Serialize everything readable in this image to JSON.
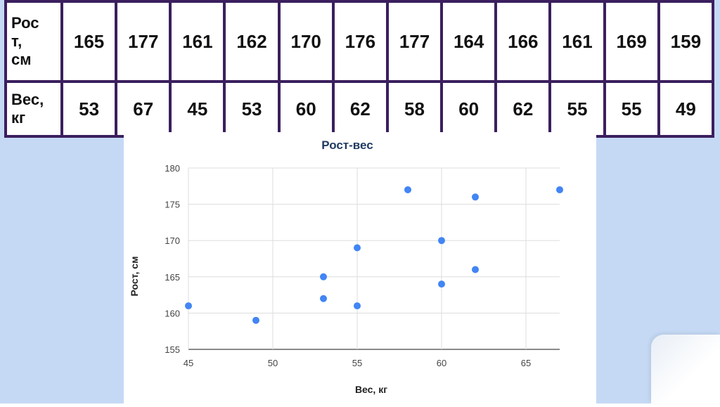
{
  "table": {
    "row1_label": "Рос\nт,\nсм",
    "row2_label": "Вес,\nкг",
    "heights": [
      "165",
      "177",
      "161",
      "162",
      "170",
      "176",
      "177",
      "164",
      "166",
      "161",
      "169",
      "159"
    ],
    "weights": [
      "53",
      "67",
      "45",
      "53",
      "60",
      "62",
      "58",
      "60",
      "62",
      "55",
      "55",
      "49"
    ]
  },
  "chart_data": {
    "type": "scatter",
    "title": "Рост-вес",
    "xlabel": "Вес, кг",
    "ylabel": "Рост, см",
    "xlim": [
      45,
      67
    ],
    "ylim": [
      155,
      180
    ],
    "x_ticks": [
      45,
      50,
      55,
      60,
      65
    ],
    "y_ticks": [
      155,
      160,
      165,
      170,
      175,
      180
    ],
    "grid": true,
    "point_color": "#4285f4",
    "points": [
      {
        "x": 53,
        "y": 165
      },
      {
        "x": 67,
        "y": 177
      },
      {
        "x": 45,
        "y": 161
      },
      {
        "x": 53,
        "y": 162
      },
      {
        "x": 60,
        "y": 170
      },
      {
        "x": 62,
        "y": 176
      },
      {
        "x": 58,
        "y": 177
      },
      {
        "x": 60,
        "y": 164
      },
      {
        "x": 62,
        "y": 166
      },
      {
        "x": 55,
        "y": 161
      },
      {
        "x": 55,
        "y": 169
      },
      {
        "x": 49,
        "y": 159
      }
    ]
  }
}
